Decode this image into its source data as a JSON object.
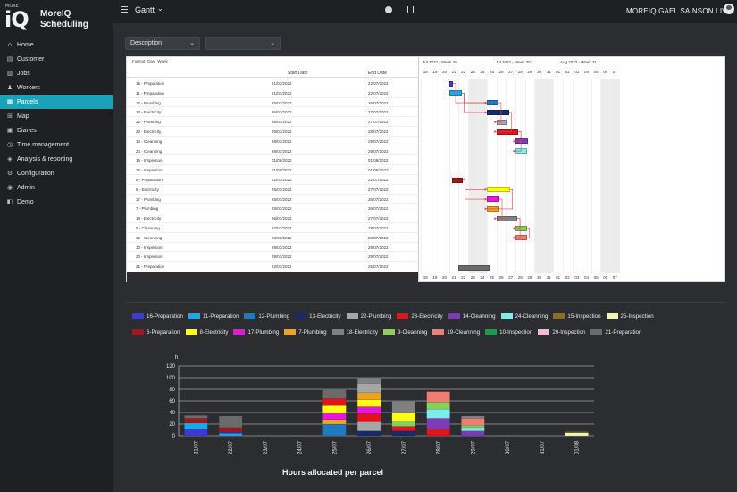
{
  "app": {
    "logo_small": "MORE",
    "logo_big": "iQ",
    "brand_line1": "MoreIQ",
    "brand_line2": "Scheduling"
  },
  "sidebar": {
    "items": [
      {
        "label": "Home",
        "icon": "home-icon",
        "glyph": "⌂",
        "active": false
      },
      {
        "label": "Customer",
        "icon": "customer-icon",
        "glyph": "▤",
        "active": false
      },
      {
        "label": "Jobs",
        "icon": "jobs-icon",
        "glyph": "▥",
        "active": false
      },
      {
        "label": "Workers",
        "icon": "workers-icon",
        "glyph": "♟",
        "active": false
      },
      {
        "label": "Parcels",
        "icon": "parcels-icon",
        "glyph": "▦",
        "active": true
      },
      {
        "label": "Map",
        "icon": "map-icon",
        "glyph": "⊞",
        "active": false
      },
      {
        "label": "Diaries",
        "icon": "diaries-icon",
        "glyph": "▣",
        "active": false
      },
      {
        "label": "Time management",
        "icon": "clock-icon",
        "glyph": "◷",
        "active": false
      },
      {
        "label": "Analysis & reporting",
        "icon": "analysis-icon",
        "glyph": "◈",
        "active": false
      },
      {
        "label": "Configuration",
        "icon": "gear-icon",
        "glyph": "⚙",
        "active": false
      },
      {
        "label": "Admin",
        "icon": "admin-icon",
        "glyph": "◉",
        "active": false
      },
      {
        "label": "Demo",
        "icon": "demo-icon",
        "glyph": "◧",
        "active": false
      }
    ]
  },
  "topbar": {
    "view_title": "Gantt",
    "user_name": "MOREIQ GAEL SAINSON LIVE"
  },
  "filters": {
    "description": "Description",
    "second": ""
  },
  "gantt": {
    "toolbar": [
      "Format",
      "Day",
      "Week"
    ],
    "columns": {
      "name": "",
      "start": "Start Date",
      "end": "End Date"
    },
    "weeks": [
      "Jul 2022 - Week 29",
      "Jul 2022 - Week 30",
      "Aug 2022 - Week 31"
    ],
    "days": [
      "18",
      "19",
      "20",
      "21",
      "22",
      "23",
      "24",
      "25",
      "26",
      "27",
      "28",
      "29",
      "30",
      "31",
      "01",
      "02",
      "03",
      "04",
      "05",
      "06",
      "07"
    ],
    "weekend_indexes": [
      5,
      6,
      12,
      13,
      19,
      20
    ],
    "rows": [
      {
        "name": "16 - Preparation",
        "start": "21/07/2022",
        "end": "22/07/2022",
        "bar": [
          3,
          0.4
        ],
        "color": "#3b3bd8"
      },
      {
        "name": "11 - Preparation",
        "start": "21/07/2022",
        "end": "22/07/2022",
        "bar": [
          3,
          1.3
        ],
        "color": "#1ea7e6"
      },
      {
        "name": "12 - Plumbing",
        "start": "25/07/2022",
        "end": "26/07/2022",
        "bar": [
          7,
          1.2
        ],
        "color": "#1f7ac0"
      },
      {
        "name": "13 - Electricity",
        "start": "26/07/2022",
        "end": "27/07/2022",
        "bar": [
          7,
          2.3
        ],
        "color": "#182a6e"
      },
      {
        "name": "22 - Plumbing",
        "start": "26/07/2022",
        "end": "27/07/2022",
        "bar": [
          8,
          1.1
        ],
        "color": "#a6a6a6"
      },
      {
        "name": "23 - Electricity",
        "start": "26/07/2022",
        "end": "28/07/2022",
        "bar": [
          8,
          2.3
        ],
        "color": "#e1141c"
      },
      {
        "name": "14 - Cleanning",
        "start": "28/07/2022",
        "end": "29/07/2022",
        "bar": [
          10,
          1.3
        ],
        "color": "#7c3cb8"
      },
      {
        "name": "24 - Cleanning",
        "start": "28/07/2022",
        "end": "29/07/2022",
        "bar": [
          10,
          1.2
        ],
        "color": "#7eecea"
      },
      {
        "name": "15 - Inspection",
        "start": "01/08/2022",
        "end": "01/08/2022",
        "bar": [
          14,
          0
        ],
        "color": "#8a6d1e"
      },
      {
        "name": "25 - Inspection",
        "start": "01/08/2022",
        "end": "01/08/2022",
        "bar": [
          14,
          0
        ],
        "color": "#f4f4b0"
      },
      {
        "name": "6 - Preparation",
        "start": "21/07/2022",
        "end": "22/07/2022",
        "bar": [
          3.3,
          1.1
        ],
        "color": "#a3161c"
      },
      {
        "name": "8 - Electricity",
        "start": "25/07/2022",
        "end": "27/07/2022",
        "bar": [
          7,
          2.4
        ],
        "color": "#ffff10"
      },
      {
        "name": "17 - Plumbing",
        "start": "25/07/2022",
        "end": "26/07/2022",
        "bar": [
          7,
          1.3
        ],
        "color": "#e41ad8"
      },
      {
        "name": "7 - Plumbing",
        "start": "25/07/2022",
        "end": "26/07/2022",
        "bar": [
          7,
          1.3
        ],
        "color": "#f2a31c"
      },
      {
        "name": "18 - Electricity",
        "start": "26/07/2022",
        "end": "27/07/2022",
        "bar": [
          8,
          2.2
        ],
        "color": "#808080"
      },
      {
        "name": "9 - Cleanning",
        "start": "27/07/2022",
        "end": "28/07/2022",
        "bar": [
          10,
          1.2
        ],
        "color": "#8bcf58"
      },
      {
        "name": "19 - Cleanning",
        "start": "28/07/2022",
        "end": "29/07/2022",
        "bar": [
          10,
          1.2
        ],
        "color": "#f07c74"
      },
      {
        "name": "10 - Inspection",
        "start": "29/07/2022",
        "end": "29/07/2022",
        "bar": [
          11,
          0
        ],
        "color": "#14a04a"
      },
      {
        "name": "20 - Inspection",
        "start": "29/07/2022",
        "end": "29/07/2022",
        "bar": [
          11,
          0
        ],
        "color": "#f4b8d8"
      },
      {
        "name": "21 - Preparation",
        "start": "22/07/2022",
        "end": "25/07/2022",
        "bar": [
          4,
          3.3
        ],
        "color": "#6b6b6b"
      }
    ]
  },
  "legend": [
    {
      "label": "16-Preparation",
      "color": "#3b3bd8"
    },
    {
      "label": "11-Preparation",
      "color": "#1ea7e6"
    },
    {
      "label": "12-Plumbing",
      "color": "#1f7ac0"
    },
    {
      "label": "13-Electricity",
      "color": "#182a6e"
    },
    {
      "label": "22-Plumbing",
      "color": "#a6a6a6"
    },
    {
      "label": "23-Electricity",
      "color": "#e1141c"
    },
    {
      "label": "14-Cleanning",
      "color": "#7c3cb8"
    },
    {
      "label": "24-Cleanning",
      "color": "#7eecea"
    },
    {
      "label": "15-Inspection",
      "color": "#8a6d1e"
    },
    {
      "label": "25-Inspection",
      "color": "#f4f4b0"
    },
    {
      "label": "6-Preparation",
      "color": "#a3161c"
    },
    {
      "label": "8-Electricity",
      "color": "#ffff10"
    },
    {
      "label": "17-Plumbing",
      "color": "#e41ad8"
    },
    {
      "label": "7-Plumbing",
      "color": "#f2a31c"
    },
    {
      "label": "18-Electricity",
      "color": "#808080"
    },
    {
      "label": "9-Cleanning",
      "color": "#8bcf58"
    },
    {
      "label": "19-Cleanning",
      "color": "#f07c74"
    },
    {
      "label": "10-Inspection",
      "color": "#14a04a"
    },
    {
      "label": "20-Inspection",
      "color": "#f4b8d8"
    },
    {
      "label": "21-Preparation",
      "color": "#6b6b6b"
    }
  ],
  "chart_data": {
    "type": "bar",
    "stacked": true,
    "title": "Hours allocated per parcel",
    "ylabel": "h",
    "ylim": [
      0,
      120
    ],
    "yticks": [
      0,
      20,
      40,
      60,
      80,
      100,
      120
    ],
    "categories": [
      "21/07",
      "22/07",
      "23/07",
      "24/07",
      "25/07",
      "26/07",
      "27/07",
      "28/07",
      "29/07",
      "30/07",
      "31/07",
      "01/08"
    ],
    "stacks": [
      [
        {
          "s": "16-Preparation",
          "v": 12
        },
        {
          "s": "11-Preparation",
          "v": 10
        },
        {
          "s": "6-Preparation",
          "v": 8
        },
        {
          "s": "21-Preparation",
          "v": 5
        }
      ],
      [
        {
          "s": "11-Preparation",
          "v": 4
        },
        {
          "s": "16-Preparation",
          "v": 2
        },
        {
          "s": "6-Preparation",
          "v": 8
        },
        {
          "s": "21-Preparation",
          "v": 20
        }
      ],
      [],
      [],
      [
        {
          "s": "12-Plumbing",
          "v": 20
        },
        {
          "s": "7-Plumbing",
          "v": 8
        },
        {
          "s": "17-Plumbing",
          "v": 12
        },
        {
          "s": "8-Electricity",
          "v": 12
        },
        {
          "s": "23-Electricity",
          "v": 12
        },
        {
          "s": "21-Preparation",
          "v": 16
        }
      ],
      [
        {
          "s": "13-Electricity",
          "v": 8
        },
        {
          "s": "22-Plumbing",
          "v": 16
        },
        {
          "s": "23-Electricity",
          "v": 14
        },
        {
          "s": "17-Plumbing",
          "v": 12
        },
        {
          "s": "8-Electricity",
          "v": 12
        },
        {
          "s": "7-Plumbing",
          "v": 12
        },
        {
          "s": "22-Plumbing",
          "v": 16
        },
        {
          "s": "18-Electricity",
          "v": 10
        }
      ],
      [
        {
          "s": "13-Electricity",
          "v": 8
        },
        {
          "s": "23-Electricity",
          "v": 8
        },
        {
          "s": "9-Cleanning",
          "v": 10
        },
        {
          "s": "8-Electricity",
          "v": 14
        },
        {
          "s": "18-Electricity",
          "v": 20
        }
      ],
      [
        {
          "s": "23-Electricity",
          "v": 12
        },
        {
          "s": "14-Cleanning",
          "v": 18
        },
        {
          "s": "24-Cleanning",
          "v": 16
        },
        {
          "s": "9-Cleanning",
          "v": 12
        },
        {
          "s": "19-Cleanning",
          "v": 18
        }
      ],
      [
        {
          "s": "14-Cleanning",
          "v": 8
        },
        {
          "s": "24-Cleanning",
          "v": 6
        },
        {
          "s": "9-Cleanning",
          "v": 4
        },
        {
          "s": "19-Cleanning",
          "v": 12
        },
        {
          "s": "18-Electricity",
          "v": 4
        }
      ],
      [],
      [],
      [
        {
          "s": "25-Inspection",
          "v": 5
        },
        {
          "s": "15-Inspection",
          "v": 2
        }
      ]
    ]
  }
}
